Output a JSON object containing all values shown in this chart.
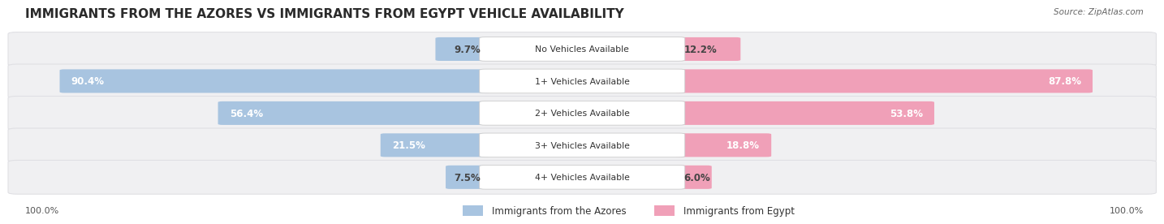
{
  "title": "IMMIGRANTS FROM THE AZORES VS IMMIGRANTS FROM EGYPT VEHICLE AVAILABILITY",
  "source": "Source: ZipAtlas.com",
  "categories": [
    "No Vehicles Available",
    "1+ Vehicles Available",
    "2+ Vehicles Available",
    "3+ Vehicles Available",
    "4+ Vehicles Available"
  ],
  "azores_values": [
    9.7,
    90.4,
    56.4,
    21.5,
    7.5
  ],
  "egypt_values": [
    12.2,
    87.8,
    53.8,
    18.8,
    6.0
  ],
  "azores_color": "#a8c4e0",
  "egypt_color": "#f0a0b8",
  "azores_label": "Immigrants from the Azores",
  "egypt_label": "Immigrants from Egypt",
  "max_value": 100.0,
  "title_fontsize": 11,
  "footer_label": "100.0%",
  "background_color": "#ffffff",
  "row_bg_color": "#f0f0f2",
  "row_sep_color": "#e0e0e4"
}
